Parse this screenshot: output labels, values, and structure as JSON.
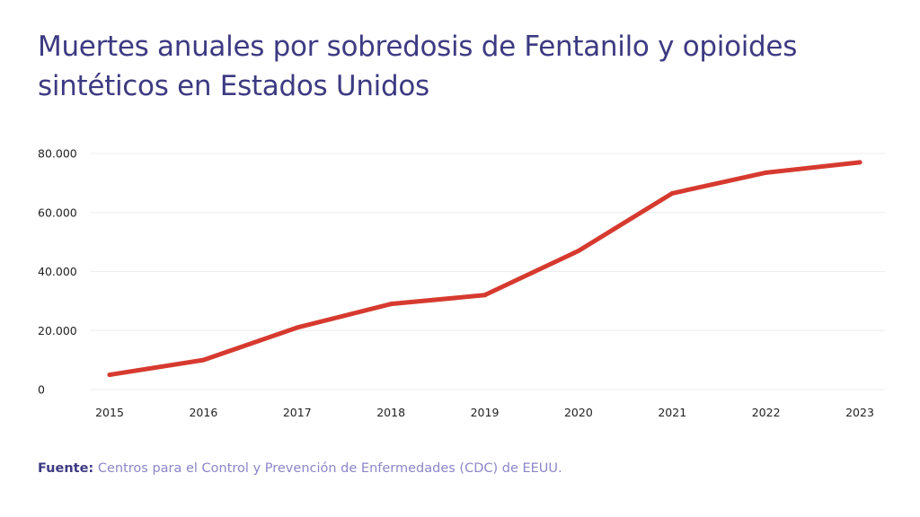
{
  "title": "Muertes anuales por sobredosis de Fentanilo y opioides sintéticos en Estados Unidos",
  "source": {
    "label": "Fuente:",
    "text": "Centros para el Control y Prevención de Enfermedades (CDC) de EEUU."
  },
  "colors": {
    "title": "#3d3a82",
    "line": "#d63a2f",
    "grid": "#eeeeee",
    "source_text": "#8b86c9"
  },
  "chart_data": {
    "type": "line",
    "x": [
      "2015",
      "2016",
      "2017",
      "2018",
      "2019",
      "2020",
      "2021",
      "2022",
      "2023"
    ],
    "series": [
      {
        "values": [
          5000,
          10000,
          21000,
          29000,
          32000,
          47000,
          66500,
          73500,
          77000
        ]
      }
    ],
    "ylim": [
      0,
      80000
    ],
    "yticks": [
      0,
      20000,
      40000,
      60000,
      80000
    ],
    "ytick_labels": [
      "0",
      "20.000",
      "40.000",
      "60.000",
      "80.000"
    ],
    "grid": true,
    "xlabel": "",
    "ylabel": ""
  }
}
